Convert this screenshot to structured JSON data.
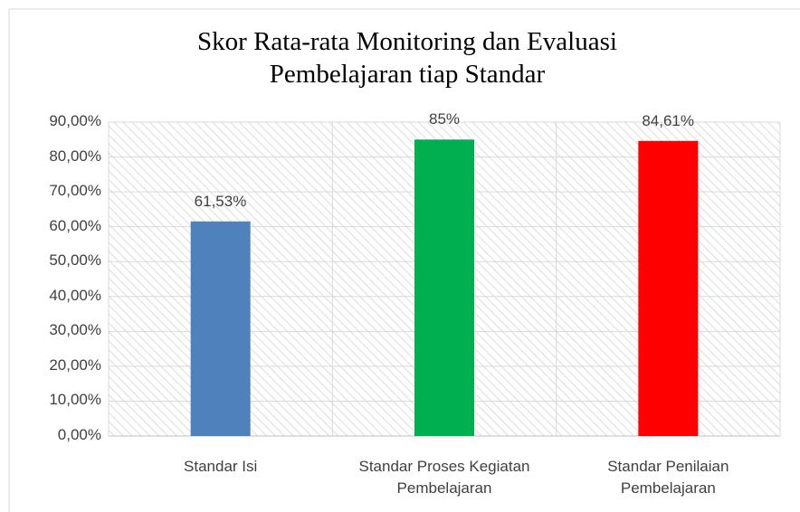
{
  "chart_data": {
    "type": "bar",
    "title": "Skor Rata-rata Monitoring dan Evaluasi Pembelajaran tiap Standar",
    "categories": [
      "Standar Isi",
      "Standar Proses Kegiatan Pembelajaran",
      "Standar Penilaian Pembelajaran"
    ],
    "values": [
      61.53,
      85,
      84.61
    ],
    "value_labels": [
      "61,53%",
      "85%",
      "84,61%"
    ],
    "colors": [
      "#4f81bd",
      "#00b050",
      "#ff0000"
    ],
    "ylim": [
      0,
      90
    ],
    "yticks": [
      {
        "value": 0,
        "label": "0,00%"
      },
      {
        "value": 10,
        "label": "10,00%"
      },
      {
        "value": 20,
        "label": "20,00%"
      },
      {
        "value": 30,
        "label": "30,00%"
      },
      {
        "value": 40,
        "label": "40,00%"
      },
      {
        "value": 50,
        "label": "50,00%"
      },
      {
        "value": 60,
        "label": "60,00%"
      },
      {
        "value": 70,
        "label": "70,00%"
      },
      {
        "value": 80,
        "label": "80,00%"
      },
      {
        "value": 90,
        "label": "90,00%"
      }
    ],
    "grid": true
  }
}
